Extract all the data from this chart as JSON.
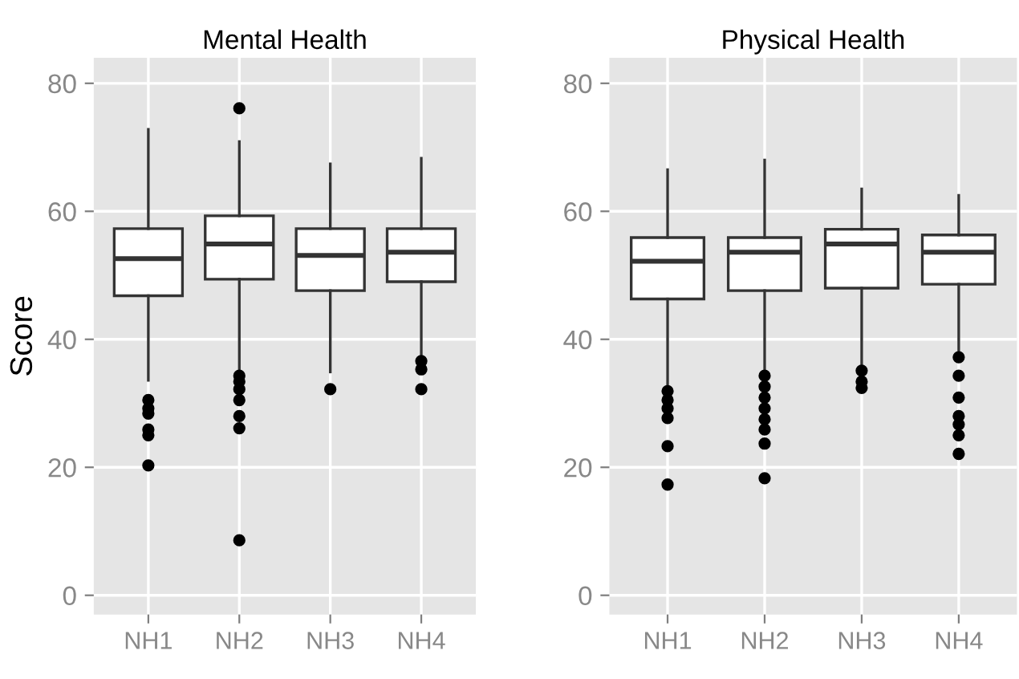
{
  "chart_data": [
    {
      "type": "box",
      "title": "Mental Health",
      "ylabel": "Score",
      "categories": [
        "NH1",
        "NH2",
        "NH3",
        "NH4"
      ],
      "ylim": [
        -3,
        84
      ],
      "yticks": [
        0,
        20,
        40,
        60,
        80
      ],
      "grid": true,
      "boxes": [
        {
          "low": 33.6,
          "q1": 46.8,
          "median": 52.6,
          "q3": 57.3,
          "high": 72.8,
          "outliers": [
            30.5,
            29.2,
            28.4,
            25.9,
            25,
            20.3
          ]
        },
        {
          "low": 34.7,
          "q1": 49.4,
          "median": 54.9,
          "q3": 59.3,
          "high": 70.9,
          "outliers": [
            76.1,
            34.3,
            33.4,
            32.2,
            30.5,
            28,
            26.1,
            8.6
          ]
        },
        {
          "low": 34.9,
          "q1": 47.6,
          "median": 53.1,
          "q3": 57.3,
          "high": 67.4,
          "outliers": [
            32.2
          ]
        },
        {
          "low": 37.2,
          "q1": 49,
          "median": 53.6,
          "q3": 57.3,
          "high": 68.3,
          "outliers": [
            36.6,
            35.3,
            32.2
          ]
        }
      ]
    },
    {
      "type": "box",
      "title": "Physical Health",
      "categories": [
        "NH1",
        "NH2",
        "NH3",
        "NH4"
      ],
      "ylim": [
        -3,
        84
      ],
      "yticks": [
        0,
        20,
        40,
        60,
        80
      ],
      "grid": true,
      "boxes": [
        {
          "low": 32.8,
          "q1": 46.3,
          "median": 52.2,
          "q3": 55.9,
          "high": 66.5,
          "outliers": [
            31.9,
            30.5,
            29.2,
            27.7,
            23.3,
            17.3
          ]
        },
        {
          "low": 34.7,
          "q1": 47.6,
          "median": 53.6,
          "q3": 55.9,
          "high": 68,
          "outliers": [
            34.3,
            32.6,
            30.9,
            29.2,
            27.5,
            25.9,
            23.7,
            18.3
          ]
        },
        {
          "low": 36.1,
          "q1": 48,
          "median": 54.9,
          "q3": 57.2,
          "high": 63.5,
          "outliers": [
            35.1,
            33.4,
            32.4
          ]
        },
        {
          "low": 37.6,
          "q1": 48.6,
          "median": 53.6,
          "q3": 56.3,
          "high": 62.5,
          "outliers": [
            37.2,
            34.3,
            30.9,
            28,
            26.7,
            25,
            22.1
          ]
        }
      ]
    }
  ]
}
